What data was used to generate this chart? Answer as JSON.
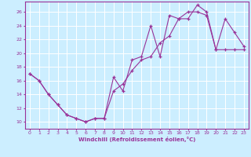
{
  "xlabel": "Windchill (Refroidissement éolien,°C)",
  "bg_color": "#cceeff",
  "line_color": "#993399",
  "grid_color": "#ffffff",
  "xlim": [
    -0.5,
    23.5
  ],
  "ylim": [
    9.0,
    27.5
  ],
  "yticks": [
    10,
    12,
    14,
    16,
    18,
    20,
    22,
    24,
    26
  ],
  "xticks": [
    0,
    1,
    2,
    3,
    4,
    5,
    6,
    7,
    8,
    9,
    10,
    11,
    12,
    13,
    14,
    15,
    16,
    17,
    18,
    19,
    20,
    21,
    22,
    23
  ],
  "series1_x": [
    0,
    1,
    2,
    3,
    4,
    5,
    6,
    7,
    8,
    9,
    10,
    11,
    12,
    13,
    14,
    15,
    16,
    17,
    18,
    19,
    20,
    21,
    22,
    23
  ],
  "series1_y": [
    17.0,
    16.0,
    14.0,
    12.5,
    11.0,
    10.5,
    10.0,
    10.5,
    10.5,
    16.5,
    14.5,
    19.0,
    19.5,
    24.0,
    19.5,
    25.5,
    25.0,
    25.0,
    27.0,
    26.0,
    20.5,
    25.0,
    23.0,
    21.0
  ],
  "series2_x": [
    0,
    1,
    2,
    3,
    4,
    5,
    6,
    7,
    8,
    9,
    10,
    11,
    12,
    13,
    14,
    15,
    16,
    17,
    18,
    19,
    20,
    21,
    22,
    23
  ],
  "series2_y": [
    17.0,
    16.0,
    14.0,
    12.5,
    11.0,
    10.5,
    10.0,
    10.5,
    10.5,
    14.5,
    15.5,
    17.5,
    19.0,
    19.5,
    21.5,
    22.5,
    25.0,
    26.0,
    26.0,
    25.5,
    20.5,
    20.5,
    20.5,
    20.5
  ]
}
